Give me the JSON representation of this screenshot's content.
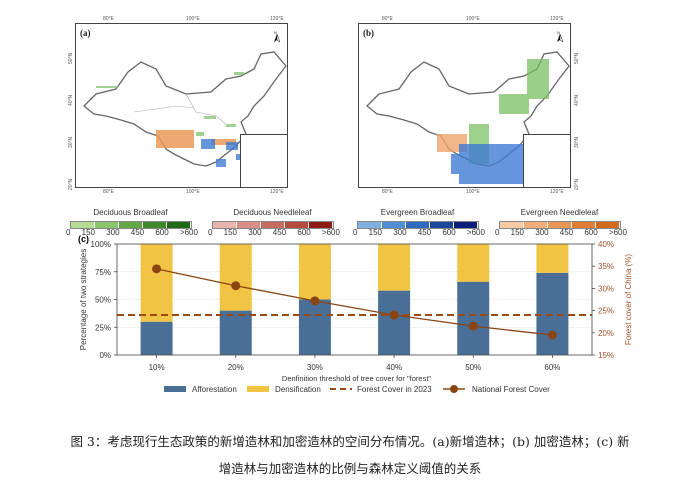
{
  "maps": [
    {
      "label": "(a)",
      "top_ticks": [
        "80°E",
        "100°E",
        "120°E"
      ],
      "bottom_ticks": [
        "80°E",
        "100°E",
        "120°E"
      ],
      "lat_ticks": [
        "50°N",
        "40°N",
        "30°N",
        "20°N"
      ],
      "north_label": "N",
      "legends": [
        {
          "title": "Deciduous Broadleaf",
          "colors": [
            "#b5dc92",
            "#8bc46a",
            "#62a845",
            "#3d8a2b",
            "#1f6b16"
          ],
          "ticks": [
            "0",
            "150",
            "300",
            "450",
            "600",
            ">600"
          ]
        },
        {
          "title": "Deciduous Needleleaf",
          "colors": [
            "#e8b4ad",
            "#d98e86",
            "#c96a60",
            "#b54a3f",
            "#8e1b16"
          ],
          "ticks": [
            "0",
            "150",
            "300",
            "450",
            "600",
            ">600"
          ]
        }
      ]
    },
    {
      "label": "(b)",
      "top_ticks": [
        "80°E",
        "100°E",
        "120°E"
      ],
      "bottom_ticks": [
        "80°E",
        "100°E",
        "120°E"
      ],
      "lat_ticks": [
        "50°N",
        "40°N",
        "30°N",
        "20°N"
      ],
      "north_label": "N",
      "legends": [
        {
          "title": "Evergreen Broadleaf",
          "colors": [
            "#7fb0e0",
            "#4f8fd4",
            "#2d6cc0",
            "#1a469c",
            "#0a1f7a"
          ],
          "ticks": [
            "0",
            "150",
            "300",
            "450",
            "600",
            ">600"
          ]
        },
        {
          "title": "Evergreen Needleleaf",
          "colors": [
            "#f7c9a0",
            "#f2ae78",
            "#eb9552",
            "#e27e34",
            "#d36a1e"
          ],
          "ticks": [
            "0",
            "150",
            "300",
            "450",
            "600",
            ">600"
          ]
        }
      ]
    }
  ],
  "chart_data": {
    "type": "bar",
    "panel_label": "(c)",
    "title": "",
    "categories": [
      "10%",
      "20%",
      "30%",
      "40%",
      "50%",
      "60%"
    ],
    "xlabel": "Denfinition threshold of tree cover for \"forest\"",
    "ylabel": "Percentage of two strategies",
    "ylim": [
      0,
      100
    ],
    "yticks": [
      "0%",
      "25%",
      "50%",
      "75%",
      "100%"
    ],
    "y2label": "Forest cover of China (%)",
    "y2lim": [
      15,
      40
    ],
    "y2ticks": [
      "15%",
      "20%",
      "25%",
      "30%",
      "35%",
      "40%"
    ],
    "grid": "horizontal-dotted",
    "stacked": true,
    "series": [
      {
        "name": "Afforestation",
        "axis": "left",
        "kind": "bar",
        "color": "#4a6f96",
        "values": [
          30,
          40,
          50,
          58,
          66,
          74
        ]
      },
      {
        "name": "Densification",
        "axis": "left",
        "kind": "bar",
        "color": "#f2c443",
        "values": [
          70,
          60,
          50,
          42,
          34,
          26
        ]
      },
      {
        "name": "Forest Cover in 2023",
        "axis": "right",
        "kind": "hline",
        "color": "#9a4a12",
        "values": [
          24.0
        ]
      },
      {
        "name": "National Forest Cover",
        "axis": "right",
        "kind": "line-marker",
        "color": "#8b4513",
        "values": [
          34.4,
          30.6,
          27.2,
          24.0,
          21.5,
          19.5
        ]
      }
    ],
    "legend": {
      "placement": "bottom",
      "items": [
        "Afforestation",
        "Densification",
        "Forest Cover in 2023",
        "National Forest Cover"
      ]
    }
  },
  "caption": {
    "line1": "图 3：考虑现行生态政策的新增造林和加密造林的空间分布情况。(a)新增造林；(b) 加密造林；(c) 新",
    "line2": "增造林与加密造林的比例与森林定义阈值的关系"
  }
}
